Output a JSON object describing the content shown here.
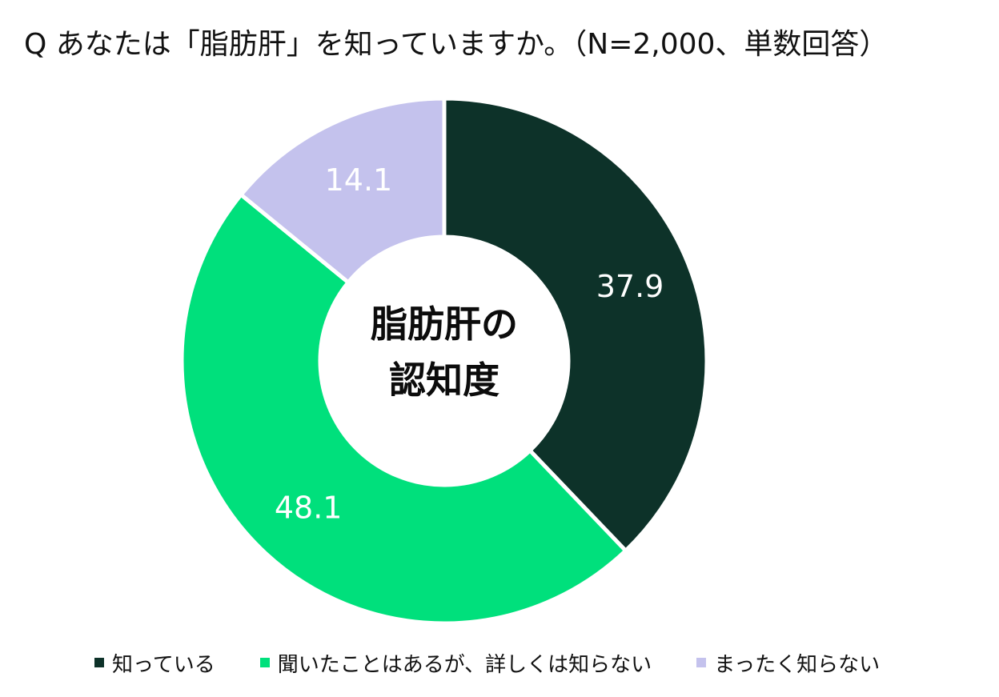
{
  "title": "Q あなたは「脂肪肝」を知っていますか。（N=2,000、単数回答）",
  "center_label": {
    "line1": "脂肪肝の",
    "line2": "認知度"
  },
  "chart_data": {
    "type": "pie",
    "variant": "donut",
    "title": "Q あなたは「脂肪肝」を知っていますか。（N=2,000、単数回答）",
    "center_text": "脂肪肝の認知度",
    "unit": "%",
    "start": "12 o'clock, clockwise",
    "slices": [
      {
        "label": "知っている",
        "value": 37.9,
        "display": "37.9",
        "color": "#0d3229",
        "label_color": "#ffffff"
      },
      {
        "label": "聞いたことはあるが、詳しくは知らない",
        "value": 48.1,
        "display": "48.1",
        "color": "#00e07c",
        "label_color": "#ffffff"
      },
      {
        "label": "まったく知らない",
        "value": 14.1,
        "display": "14.1",
        "color": "#c4c2ed",
        "label_color": "#ffffff"
      }
    ],
    "legend": {
      "placement": "bottom"
    }
  }
}
